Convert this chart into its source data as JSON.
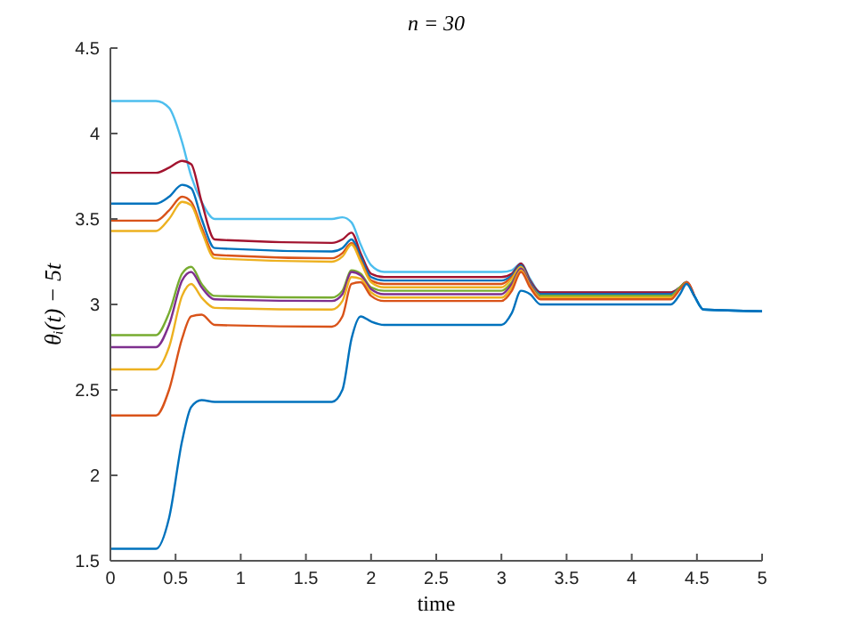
{
  "chart_data": {
    "type": "line",
    "title": "n = 30",
    "xlabel": "time",
    "ylabel": "θᵢ(t) − 5t",
    "x": [
      0,
      0.35,
      0.45,
      0.55,
      0.62,
      0.7,
      0.8,
      1.7,
      1.78,
      1.85,
      1.92,
      2.0,
      2.1,
      3.0,
      3.08,
      3.15,
      3.22,
      3.3,
      4.3,
      4.37,
      4.42,
      4.48,
      4.55,
      5
    ],
    "series": [
      {
        "color": "#4dbeee",
        "values": [
          4.19,
          4.19,
          4.15,
          3.95,
          3.75,
          3.6,
          3.5,
          3.5,
          3.51,
          3.48,
          3.35,
          3.23,
          3.19,
          3.19,
          3.2,
          3.24,
          3.15,
          3.07,
          3.07,
          3.1,
          3.13,
          3.05,
          2.97,
          2.96
        ]
      },
      {
        "color": "#a2142f",
        "values": [
          3.77,
          3.77,
          3.8,
          3.84,
          3.82,
          3.6,
          3.38,
          3.36,
          3.38,
          3.42,
          3.3,
          3.18,
          3.16,
          3.16,
          3.18,
          3.24,
          3.14,
          3.07,
          3.07,
          3.1,
          3.13,
          3.05,
          null,
          null
        ]
      },
      {
        "color": "#0072bd",
        "values": [
          3.59,
          3.59,
          3.63,
          3.7,
          3.68,
          3.5,
          3.33,
          3.31,
          3.33,
          3.38,
          3.28,
          3.16,
          3.14,
          3.14,
          3.17,
          3.23,
          3.13,
          3.06,
          3.06,
          3.1,
          3.13,
          3.05,
          2.97,
          2.96
        ]
      },
      {
        "color": "#d95319",
        "values": [
          3.49,
          3.49,
          3.55,
          3.63,
          3.6,
          3.45,
          3.29,
          3.27,
          3.3,
          3.36,
          3.26,
          3.14,
          3.12,
          3.12,
          3.16,
          3.22,
          3.12,
          3.05,
          3.05,
          3.1,
          3.13,
          3.05,
          null,
          null
        ]
      },
      {
        "color": "#edb120",
        "values": [
          3.43,
          3.43,
          3.5,
          3.6,
          3.58,
          3.43,
          3.27,
          3.25,
          3.28,
          3.35,
          3.25,
          3.13,
          3.1,
          3.1,
          3.15,
          3.22,
          3.12,
          3.05,
          3.05,
          3.1,
          3.13,
          null,
          null,
          null
        ]
      },
      {
        "color": "#77ac30",
        "values": [
          2.82,
          2.82,
          2.95,
          3.18,
          3.22,
          3.12,
          3.05,
          3.04,
          3.08,
          3.2,
          3.18,
          3.1,
          3.08,
          3.08,
          3.13,
          3.21,
          3.12,
          3.05,
          3.05,
          3.1,
          3.13,
          null,
          null,
          null
        ]
      },
      {
        "color": "#7e2f8e",
        "values": [
          2.75,
          2.75,
          2.88,
          3.14,
          3.19,
          3.1,
          3.03,
          3.02,
          3.06,
          3.19,
          3.17,
          3.09,
          3.06,
          3.06,
          3.12,
          3.21,
          3.12,
          3.04,
          3.04,
          3.09,
          3.13,
          null,
          null,
          null
        ]
      },
      {
        "color": "#edb120",
        "values": [
          2.62,
          2.62,
          2.75,
          3.05,
          3.12,
          3.04,
          2.98,
          2.97,
          3.02,
          3.16,
          3.15,
          3.07,
          3.04,
          3.04,
          3.1,
          3.2,
          3.11,
          3.04,
          3.04,
          3.09,
          3.13,
          null,
          null,
          null
        ]
      },
      {
        "color": "#d95319",
        "values": [
          2.35,
          2.35,
          2.5,
          2.8,
          2.93,
          2.94,
          2.88,
          2.87,
          2.93,
          3.12,
          3.13,
          3.05,
          3.02,
          3.02,
          3.08,
          3.19,
          3.1,
          3.03,
          3.03,
          3.09,
          3.13,
          null,
          null,
          null
        ]
      },
      {
        "color": "#0072bd",
        "values": [
          1.57,
          1.57,
          1.75,
          2.2,
          2.4,
          2.44,
          2.43,
          2.43,
          2.5,
          2.8,
          2.93,
          2.9,
          2.88,
          2.88,
          2.95,
          3.08,
          3.06,
          3.0,
          3.0,
          3.06,
          3.12,
          3.05,
          2.97,
          2.96
        ]
      }
    ],
    "xlim": [
      0,
      5
    ],
    "xticks": [
      0,
      0.5,
      1,
      1.5,
      2,
      2.5,
      3,
      3.5,
      4,
      4.5,
      5
    ],
    "ylim": [
      1.5,
      4.5
    ],
    "yticks": [
      1.5,
      2,
      2.5,
      3,
      3.5,
      4,
      4.5
    ],
    "grid": false,
    "marker": "none",
    "line_style": "solid"
  }
}
